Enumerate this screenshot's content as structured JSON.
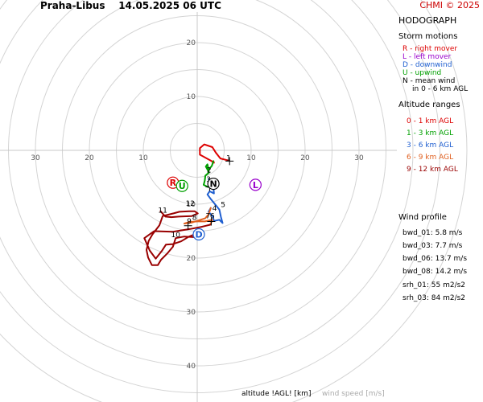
{
  "header": {
    "station": "Praha-Libus",
    "datetime": "14.05.2025 06 UTC",
    "credit": "CHMI © 2025"
  },
  "footer": {
    "altitude_label": "altitude !AGL! [km]",
    "wind_speed_label": "wind speed [m/s]"
  },
  "legend": {
    "title": "HODOGRAPH",
    "storm_motions_title": "Storm motions",
    "storm_motions": [
      {
        "text": "R - right mover",
        "color": "#dd0000"
      },
      {
        "text": "L - left mover",
        "color": "#9900cc"
      },
      {
        "text": "D - downwind",
        "color": "#1f5fd0"
      },
      {
        "text": "U - upwind",
        "color": "#00a000"
      },
      {
        "text": "N - mean wind",
        "color": "#000000"
      }
    ],
    "mean_wind_continuation": "in 0 - 6 km AGL",
    "altitude_ranges_title": "Altitude ranges",
    "altitude_ranges": [
      {
        "text": "0 - 1 km AGL",
        "color": "#dd0000"
      },
      {
        "text": "1 - 3 km AGL",
        "color": "#00a000"
      },
      {
        "text": "3 - 6 km AGL",
        "color": "#1f5fd0"
      },
      {
        "text": "6 - 9 km AGL",
        "color": "#e06020"
      },
      {
        "text": "9 - 12 km AGL",
        "color": "#990000"
      }
    ],
    "wind_profile_title": "Wind profile",
    "wind_profile": [
      {
        "text": "bwd_01: 5.8 m/s"
      },
      {
        "text": "bwd_03: 7.7 m/s"
      },
      {
        "text": "bwd_06: 13.7 m/s"
      },
      {
        "text": "bwd_08: 14.2 m/s"
      },
      {
        "text": "srh_01: 55 m2/s2"
      },
      {
        "text": "srh_03: 84 m2/s2"
      }
    ]
  },
  "chart_data": {
    "type": "line",
    "title": "HODOGRAPH",
    "x_tick_labels": [
      "30",
      "20",
      "10",
      "10",
      "20",
      "30"
    ],
    "x_tick_values": [
      -30,
      -20,
      -10,
      10,
      20,
      30
    ],
    "y_tick_labels": [
      "20",
      "10",
      "10",
      "20",
      "30",
      "40"
    ],
    "y_tick_values": [
      20,
      10,
      -10,
      -20,
      -30,
      -40
    ],
    "xlim": [
      -36.5,
      36.5
    ],
    "ylim": [
      -46,
      25
    ],
    "rings": [
      5,
      10,
      15,
      20,
      25,
      30,
      35,
      40,
      45,
      50
    ],
    "series": [
      {
        "name": "0 - 1 km AGL",
        "color": "#dd0000",
        "points": [
          [
            5.8,
            -1.9
          ],
          [
            4.3,
            -1.5
          ],
          [
            3.5,
            -0.5
          ],
          [
            2.8,
            0.6
          ],
          [
            1.3,
            1.1
          ],
          [
            0.5,
            0.4
          ],
          [
            0.5,
            -0.8
          ],
          [
            2.5,
            -1.9
          ],
          [
            3.1,
            -2.3
          ],
          [
            3.0,
            -2.0
          ]
        ]
      },
      {
        "name": "1 - 3 km AGL",
        "color": "#00a000",
        "points": [
          [
            3.0,
            -2.0
          ],
          [
            2.7,
            -2.9
          ],
          [
            2.1,
            -3.6
          ],
          [
            1.9,
            -2.6
          ],
          [
            1.6,
            -3.0
          ],
          [
            2.2,
            -4.1
          ],
          [
            1.5,
            -4.7
          ],
          [
            1.4,
            -5.6
          ],
          [
            1.2,
            -6.4
          ],
          [
            2.0,
            -6.8
          ],
          [
            2.6,
            -6.0
          ],
          [
            2.1,
            -5.3
          ]
        ]
      },
      {
        "name": "3 - 6 km AGL",
        "color": "#1f5fd0",
        "points": [
          [
            2.1,
            -5.3
          ],
          [
            3.0,
            -6.9
          ],
          [
            3.1,
            -8.0
          ],
          [
            2.3,
            -7.6
          ],
          [
            1.9,
            -8.2
          ],
          [
            2.4,
            -8.9
          ],
          [
            3.3,
            -10.0
          ],
          [
            4.1,
            -11.0
          ],
          [
            4.4,
            -12.4
          ],
          [
            4.7,
            -13.5
          ],
          [
            4.1,
            -12.9
          ],
          [
            3.1,
            -13.1
          ],
          [
            2.9,
            -12.3
          ],
          [
            2.1,
            -11.4
          ],
          [
            2.5,
            -10.7
          ]
        ]
      },
      {
        "name": "6 - 9 km AGL",
        "color": "#e06020",
        "points": [
          [
            2.5,
            -10.7
          ],
          [
            2.1,
            -11.9
          ],
          [
            1.5,
            -12.6
          ],
          [
            0.3,
            -13.0
          ],
          [
            -1.0,
            -13.4
          ],
          [
            -2.4,
            -13.6
          ],
          [
            -1.5,
            -13.3
          ],
          [
            0.1,
            -13.2
          ],
          [
            1.4,
            -13.2
          ],
          [
            2.8,
            -12.9
          ],
          [
            2.5,
            -13.6
          ],
          [
            2.4,
            -13.8
          ]
        ]
      },
      {
        "name": "9 - 12 km AGL",
        "color": "#990000",
        "points": [
          [
            2.4,
            -13.8
          ],
          [
            0.8,
            -14.2
          ],
          [
            -1.3,
            -14.6
          ],
          [
            -4.5,
            -15.1
          ],
          [
            -8.0,
            -15.0
          ],
          [
            -9.8,
            -16.3
          ],
          [
            -8.8,
            -18.6
          ],
          [
            -7.7,
            -20.1
          ],
          [
            -6.5,
            -18.6
          ],
          [
            -5.8,
            -17.5
          ],
          [
            -4.5,
            -17.4
          ],
          [
            -3.0,
            -16.9
          ],
          [
            -1.5,
            -16.0
          ],
          [
            -0.5,
            -15.6
          ],
          [
            0.6,
            -15.9
          ],
          [
            -0.7,
            -16.1
          ],
          [
            -2.4,
            -16.0
          ],
          [
            -4.0,
            -16.3
          ],
          [
            -4.5,
            -17.9
          ],
          [
            -5.6,
            -19.2
          ],
          [
            -6.7,
            -20.3
          ],
          [
            -7.3,
            -21.3
          ],
          [
            -8.4,
            -21.3
          ],
          [
            -9.1,
            -19.9
          ],
          [
            -9.4,
            -18.5
          ],
          [
            -9.0,
            -16.8
          ],
          [
            -8.3,
            -15.6
          ],
          [
            -7.0,
            -13.9
          ],
          [
            -6.4,
            -12.2
          ],
          [
            -4.4,
            -11.7
          ],
          [
            -3.3,
            -11.4
          ],
          [
            -1.5,
            -11.3
          ],
          [
            -0.5,
            -11.3
          ],
          [
            0.1,
            -11.7
          ],
          [
            -1.0,
            -12.2
          ],
          [
            -3.4,
            -12.3
          ],
          [
            -4.8,
            -12.4
          ],
          [
            -5.9,
            -12.3
          ],
          [
            -6.8,
            -11.3
          ]
        ]
      }
    ],
    "height_labels": [
      {
        "text": "1",
        "x": 5.8,
        "y": -1.9
      },
      {
        "text": "2",
        "x": 2.2,
        "y": -4.1
      },
      {
        "text": "3",
        "x": 2.1,
        "y": -5.8
      },
      {
        "text": "4",
        "x": 3.2,
        "y": -11.2
      },
      {
        "text": "5",
        "x": 4.8,
        "y": -10.5
      },
      {
        "text": "6",
        "x": 2.8,
        "y": -12.6
      },
      {
        "text": "7",
        "x": 2.0,
        "y": -12.6
      },
      {
        "text": "8",
        "x": -0.5,
        "y": -12.9
      },
      {
        "text": "9",
        "x": -1.5,
        "y": -13.6
      },
      {
        "text": "10",
        "x": -4.0,
        "y": -16.1
      },
      {
        "text": "11",
        "x": -6.4,
        "y": -11.6
      },
      {
        "text": "12",
        "x": -1.3,
        "y": -10.3
      }
    ],
    "cross_markers": [
      [
        6.0,
        -2.0
      ],
      [
        2.3,
        -6.8
      ],
      [
        2.6,
        -13.2
      ],
      [
        -1.7,
        -14.0
      ]
    ],
    "storm_motion_points": [
      {
        "letter": "R",
        "color": "#dd0000",
        "x": -4.5,
        "y": -6.0
      },
      {
        "letter": "U",
        "color": "#00a000",
        "x": -2.8,
        "y": -6.6
      },
      {
        "letter": "N",
        "color": "#000000",
        "x": 3.0,
        "y": -6.2
      },
      {
        "letter": "L",
        "color": "#9900cc",
        "x": 10.8,
        "y": -6.4
      },
      {
        "letter": "D",
        "color": "#1f5fd0",
        "x": 0.3,
        "y": -15.6
      }
    ]
  }
}
